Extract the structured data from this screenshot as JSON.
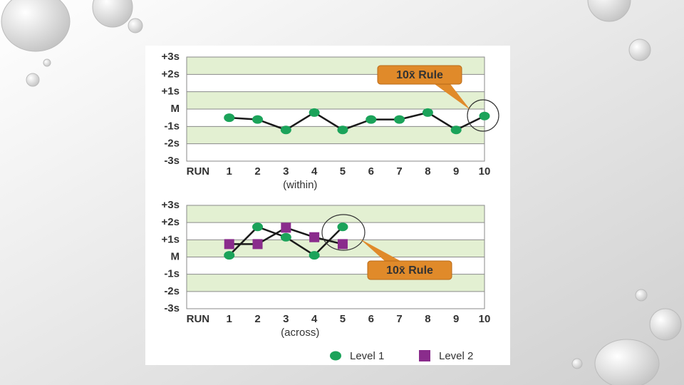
{
  "chart_data": [
    {
      "type": "line",
      "x": [
        1,
        2,
        3,
        4,
        5,
        6,
        7,
        8,
        9,
        10
      ],
      "values": [
        -0.5,
        -0.6,
        -1.2,
        -0.2,
        -1.2,
        -0.6,
        -0.6,
        -0.2,
        -1.2,
        -0.4
      ],
      "color": "#1ba35a",
      "xlim": [
        -0.5,
        10
      ],
      "xticks": [
        1,
        2,
        3,
        4,
        5,
        6,
        7,
        8,
        9,
        10
      ],
      "ylim": [
        -3,
        3
      ],
      "yticks": [
        {
          "value": -3,
          "label": "-3s"
        },
        {
          "value": -2,
          "label": "-2s"
        },
        {
          "value": -1,
          "label": "-1s"
        },
        {
          "value": 0,
          "label": "M"
        },
        {
          "value": 1,
          "label": "+1s"
        },
        {
          "value": 2,
          "label": "+2s"
        },
        {
          "value": 3,
          "label": "+3s"
        }
      ],
      "run_label": "RUN",
      "xlabel": "(within)",
      "grid": true,
      "annotations": [
        {
          "text": "10x̄ Rule"
        }
      ]
    },
    {
      "type": "line",
      "x": [
        1,
        2,
        3,
        4,
        5
      ],
      "series": [
        {
          "name": "Level 1",
          "color": "#1ba35a",
          "marker": "circle",
          "values": [
            0.1,
            1.75,
            1.15,
            0.1,
            1.75
          ]
        },
        {
          "name": "Level 2",
          "color": "#8a2c8c",
          "marker": "square",
          "values": [
            0.75,
            0.75,
            1.7,
            1.15,
            0.75
          ]
        }
      ],
      "xlim": [
        -0.5,
        10
      ],
      "xticks": [
        1,
        2,
        3,
        4,
        5,
        6,
        7,
        8,
        9,
        10
      ],
      "ylim": [
        -3,
        3
      ],
      "yticks": [
        {
          "value": -3,
          "label": "-3s"
        },
        {
          "value": -2,
          "label": "-2s"
        },
        {
          "value": -1,
          "label": "-1s"
        },
        {
          "value": 0,
          "label": "M"
        },
        {
          "value": 1,
          "label": "+1s"
        },
        {
          "value": 2,
          "label": "+2s"
        },
        {
          "value": 3,
          "label": "+3s"
        }
      ],
      "run_label": "RUN",
      "xlabel": "(across)",
      "grid": true,
      "legend": "bottom",
      "annotations": [
        {
          "text": "10x̄ Rule"
        }
      ]
    }
  ]
}
